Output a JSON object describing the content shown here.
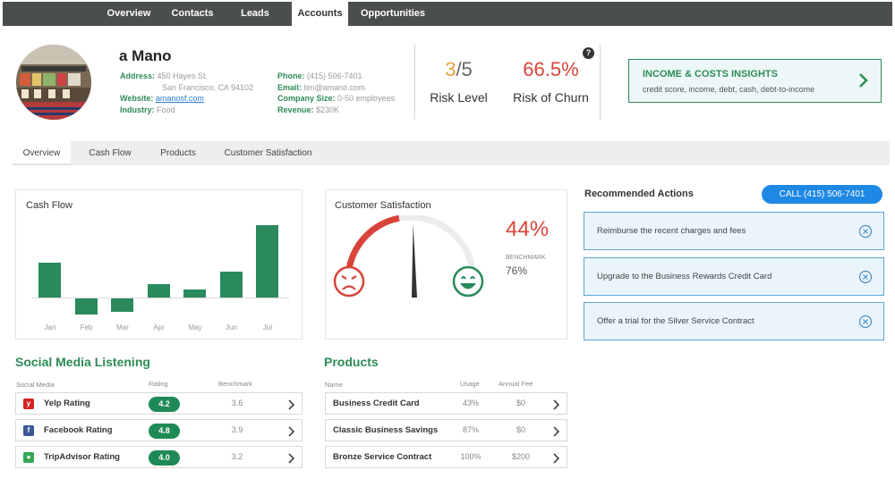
{
  "nav": {
    "tabs": [
      "Overview",
      "Contacts",
      "Leads",
      "Accounts",
      "Opportunities"
    ],
    "active": "Accounts"
  },
  "account": {
    "name": "a Mano",
    "address_label": "Address:",
    "address_line1": "450 Hayes St.",
    "address_line2": "San Francisco, CA 94102",
    "website_label": "Website:",
    "website": "amanosf.com",
    "industry_label": "Industry:",
    "industry": "Food",
    "phone_label": "Phone:",
    "phone": "(415) 506-7401",
    "email_label": "Email:",
    "email": "tim@amano.com",
    "company_size_label": "Company Size:",
    "company_size": "0-50 employees",
    "revenue_label": "Revenue:",
    "revenue": "$230K"
  },
  "metrics": {
    "risk_level_value": "3",
    "risk_level_max": "/5",
    "risk_level_label": "Risk Level",
    "churn_value": "66.5%",
    "churn_label": "Risk of Churn",
    "help_icon": "?"
  },
  "insights": {
    "title": "INCOME & COSTS INSIGHTS",
    "subtitle": "credit score, income, debt, cash, debt-to-income"
  },
  "subtabs": [
    "Overview",
    "Cash Flow",
    "Products",
    "Customer Satisfaction"
  ],
  "cash_flow": {
    "title": "Cash Flow",
    "chart_data": {
      "type": "bar",
      "categories": [
        "Jan",
        "Feb",
        "Mar",
        "Apr",
        "May",
        "Jun",
        "Jul"
      ],
      "values": [
        40,
        -18,
        -15,
        15,
        9,
        30,
        83
      ],
      "color": "#2a8a5c"
    }
  },
  "satisfaction": {
    "title": "Customer Satisfaction",
    "percent": "44%",
    "benchmark_label": "BENCHMARK",
    "benchmark_value": "76%",
    "gauge_fraction": 0.44
  },
  "recommended": {
    "title": "Recommended Actions",
    "call_button": "CALL (415) 506-7401",
    "actions": [
      "Reimburse the recent charges and fees",
      "Upgrade to the Business Rewards Credit Card",
      "Offer a trial for the Silver Service Contract"
    ]
  },
  "social": {
    "title": "Social Media Listening",
    "headers": [
      "Social Media",
      "Rating",
      "Benchmark"
    ],
    "rows": [
      {
        "name": "Yelp Rating",
        "rating": "4.2",
        "benchmark": "3.6",
        "icon": "yelp-icon",
        "color": "#d32323"
      },
      {
        "name": "Facebook Rating",
        "rating": "4.8",
        "benchmark": "3.9",
        "icon": "facebook-icon",
        "color": "#3b5998"
      },
      {
        "name": "TripAdvisor Rating",
        "rating": "4.0",
        "benchmark": "3.2",
        "icon": "tripadvisor-icon",
        "color": "#34a853"
      }
    ]
  },
  "products": {
    "title": "Products",
    "headers": [
      "Name",
      "Usage",
      "Annual Fee"
    ],
    "rows": [
      {
        "name": "Business Credit Card",
        "usage": "43%",
        "fee": "$0"
      },
      {
        "name": "Classic Business Savings",
        "usage": "87%",
        "fee": "$0"
      },
      {
        "name": "Bronze Service Contract",
        "usage": "100%",
        "fee": "$200"
      }
    ]
  }
}
